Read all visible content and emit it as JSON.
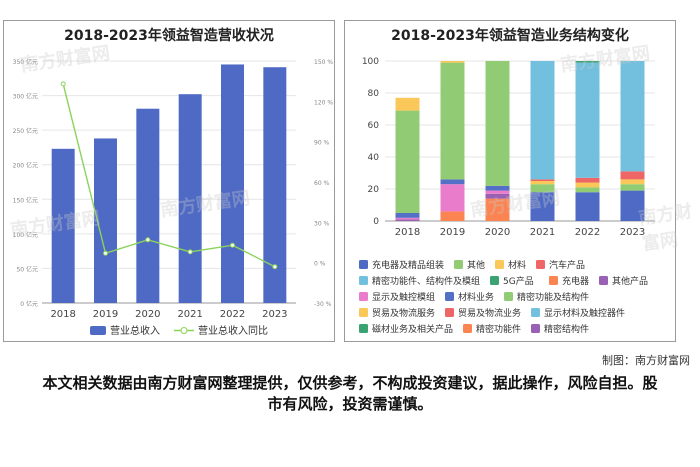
{
  "credit": "制图：南方财富网",
  "disclaimer": "本文相关数据由南方财富网整理提供，仅供参考，不构成投资建议，据此操作，风险自担。股市有风险，投资需谨慎。",
  "watermark": "南方财富网",
  "chart_data": [
    {
      "type": "bar",
      "title": "2018-2023年领益智造营收状况",
      "categories": [
        "2018",
        "2019",
        "2020",
        "2021",
        "2022",
        "2023"
      ],
      "y_ticks": [
        "0 亿元",
        "50 亿元",
        "100 亿元",
        "150 亿元",
        "200 亿元",
        "250 亿元",
        "300 亿元",
        "350 亿元"
      ],
      "y2_ticks": [
        "-30 %",
        "0 %",
        "30 %",
        "60 %",
        "90 %",
        "120 %",
        "150 %"
      ],
      "ylim": [
        0,
        350
      ],
      "y2lim": [
        -30,
        150
      ],
      "legend": [
        "营业总收入",
        "营业总收入同比"
      ],
      "series": [
        {
          "name": "营业总收入",
          "type": "bar",
          "color": "#4f6ac5",
          "values": [
            223,
            238,
            281,
            302,
            345,
            341
          ]
        },
        {
          "name": "营业总收入同比",
          "type": "line",
          "color": "#8bd35a",
          "values": [
            133,
            7,
            17,
            8,
            13,
            -3
          ]
        }
      ]
    },
    {
      "type": "bar",
      "stacked": true,
      "title": "2018-2023年领益智造业务结构变化",
      "categories": [
        "2018",
        "2019",
        "2020",
        "2021",
        "2022",
        "2023"
      ],
      "y_ticks": [
        "0",
        "20",
        "40",
        "60",
        "80",
        "100"
      ],
      "ylim": [
        0,
        100
      ],
      "series": [
        {
          "name": "充电器及精品组装",
          "color": "#4f6ac5",
          "values": [
            0,
            0,
            0,
            0,
            0,
            0
          ]
        },
        {
          "name": "其他",
          "color": "#91cc75",
          "values": [
            0,
            0,
            0,
            0,
            0,
            0
          ]
        },
        {
          "name": "材料",
          "color": "#fac858",
          "values": [
            0,
            0,
            0,
            0,
            0,
            0
          ]
        },
        {
          "name": "汽车产品",
          "color": "#ee6666",
          "values": [
            0,
            0,
            0,
            0,
            0,
            0
          ]
        },
        {
          "name": "精密功能件、结构件及模组",
          "color": "#73c0de",
          "values": [
            0,
            0,
            0,
            0,
            0,
            0
          ]
        },
        {
          "name": "5G产品",
          "color": "#3ba272",
          "values": [
            0,
            0,
            0,
            0,
            0,
            0
          ]
        },
        {
          "name": "充电器",
          "color": "#fc8452",
          "values": [
            0,
            0,
            0,
            0,
            0,
            0
          ]
        },
        {
          "name": "其他产品",
          "color": "#9a60b4",
          "values": [
            0,
            0,
            0,
            0,
            0,
            0
          ]
        },
        {
          "name": "显示及触控模组",
          "color": "#ea7ccc",
          "values": [
            0,
            0,
            0,
            0,
            0,
            0
          ]
        },
        {
          "name": "材料业务",
          "color": "#5470c6",
          "values": [
            0,
            0,
            0,
            0,
            0,
            0
          ]
        },
        {
          "name": "精密功能及结构件",
          "color": "#91cc75",
          "values": [
            0,
            0,
            0,
            0,
            0,
            0
          ]
        },
        {
          "name": "贸易及物流服务",
          "color": "#fac858",
          "values": [
            0,
            0,
            0,
            0,
            0,
            0
          ]
        },
        {
          "name": "贸易及物流业务",
          "color": "#ee6666",
          "values": [
            0,
            0,
            0,
            0,
            0,
            0
          ]
        },
        {
          "name": "显示材料及触控器件",
          "color": "#73c0de",
          "values": [
            0,
            0,
            0,
            0,
            0,
            0
          ]
        },
        {
          "name": "磁材业务及相关产品",
          "color": "#3ba272",
          "values": [
            0,
            0,
            0,
            0,
            0,
            0
          ]
        },
        {
          "name": "精密功能件",
          "color": "#fc8452",
          "values": [
            0,
            0,
            0,
            0,
            0,
            0
          ]
        },
        {
          "name": "精密结构件",
          "color": "#9a60b4",
          "values": [
            0,
            0,
            0,
            0,
            0,
            0
          ]
        }
      ],
      "stacks": [
        {
          "year": "2018",
          "segments": [
            {
              "series": "其他产品",
              "value": 1
            },
            {
              "series": "显示及触控模组",
              "value": 1
            },
            {
              "series": "材料业务",
              "value": 3
            },
            {
              "series": "精密功能及结构件",
              "value": 64
            },
            {
              "series": "贸易及物流服务",
              "value": 8
            }
          ]
        },
        {
          "year": "2019",
          "segments": [
            {
              "series": "充电器",
              "value": 6
            },
            {
              "series": "显示及触控模组",
              "value": 17
            },
            {
              "series": "材料业务",
              "value": 3
            },
            {
              "series": "精密功能及结构件",
              "value": 73
            },
            {
              "series": "贸易及物流服务",
              "value": 1
            }
          ]
        },
        {
          "year": "2020",
          "segments": [
            {
              "series": "充电器",
              "value": 14
            },
            {
              "series": "其他产品",
              "value": 3
            },
            {
              "series": "显示及触控模组",
              "value": 2
            },
            {
              "series": "材料业务",
              "value": 3
            },
            {
              "series": "精密功能及结构件",
              "value": 78
            }
          ]
        },
        {
          "year": "2021",
          "segments": [
            {
              "series": "充电器及精品组装",
              "value": 18
            },
            {
              "series": "其他",
              "value": 5
            },
            {
              "series": "材料",
              "value": 2
            },
            {
              "series": "汽车产品",
              "value": 1
            },
            {
              "series": "精密功能件、结构件及模组",
              "value": 74
            }
          ]
        },
        {
          "year": "2022",
          "segments": [
            {
              "series": "充电器及精品组装",
              "value": 18
            },
            {
              "series": "其他",
              "value": 3
            },
            {
              "series": "材料",
              "value": 3
            },
            {
              "series": "汽车产品",
              "value": 3
            },
            {
              "series": "精密功能件、结构件及模组",
              "value": 72
            },
            {
              "series": "5G产品",
              "value": 1
            }
          ]
        },
        {
          "year": "2023",
          "segments": [
            {
              "series": "充电器及精品组装",
              "value": 19
            },
            {
              "series": "其他",
              "value": 4
            },
            {
              "series": "材料",
              "value": 3
            },
            {
              "series": "汽车产品",
              "value": 5
            },
            {
              "series": "精密功能件、结构件及模组",
              "value": 69
            }
          ]
        }
      ]
    }
  ]
}
